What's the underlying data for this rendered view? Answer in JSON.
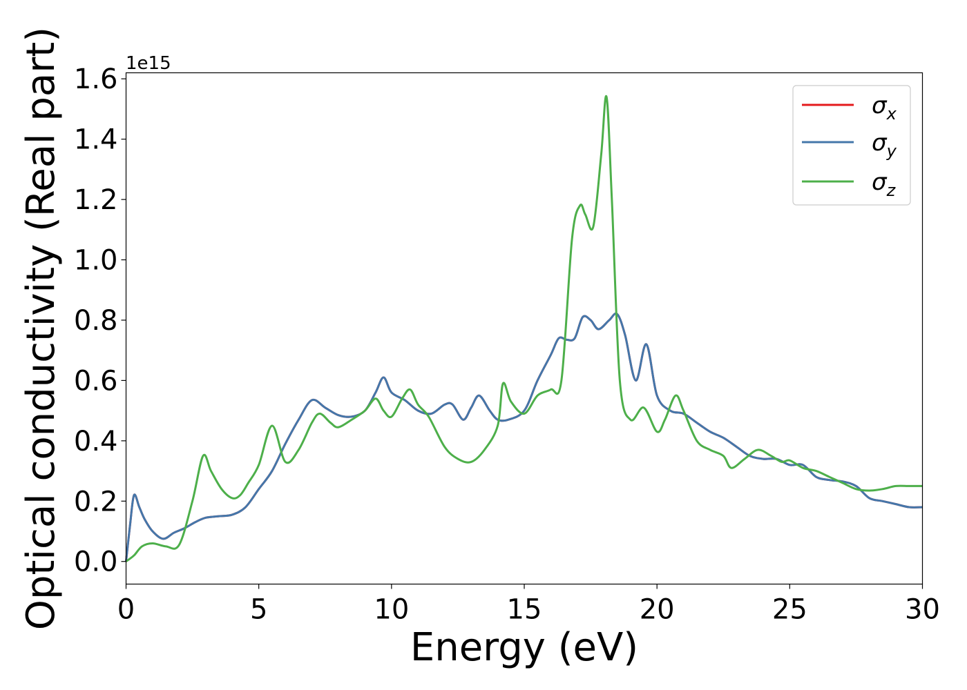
{
  "chart_data": {
    "type": "line",
    "title": "",
    "xlabel": "Energy (eV)",
    "ylabel": "Optical conductivity (Real part)",
    "y_offset_label": "1e15",
    "xlim": [
      0,
      30
    ],
    "ylim": [
      -0.075,
      1.62
    ],
    "x_ticks": [
      0,
      5,
      10,
      15,
      20,
      25,
      30
    ],
    "x_tick_labels": [
      "0",
      "5",
      "10",
      "15",
      "20",
      "25",
      "30"
    ],
    "y_ticks": [
      0.0,
      0.2,
      0.4,
      0.6,
      0.8,
      1.0,
      1.2,
      1.4,
      1.6
    ],
    "y_tick_labels": [
      "0.0",
      "0.2",
      "0.4",
      "0.6",
      "0.8",
      "1.0",
      "1.2",
      "1.4",
      "1.6"
    ],
    "grid": false,
    "legend_position": "top-right",
    "series": [
      {
        "name": "σx",
        "legend_base": "σ",
        "legend_sub": "x",
        "color": "#e41a1c",
        "x": [
          0,
          0.15,
          0.3,
          0.5,
          0.7,
          1.0,
          1.4,
          1.8,
          2.2,
          2.6,
          3.0,
          3.5,
          4.0,
          4.5,
          5.0,
          5.5,
          6.0,
          6.5,
          7.0,
          7.5,
          8.0,
          8.5,
          9.0,
          9.4,
          9.7,
          10.0,
          10.5,
          11.0,
          11.5,
          12.0,
          12.3,
          12.7,
          13.0,
          13.3,
          13.7,
          14.0,
          14.4,
          15.0,
          15.5,
          16.0,
          16.3,
          16.6,
          16.9,
          17.2,
          17.5,
          17.8,
          18.2,
          18.5,
          18.8,
          19.2,
          19.6,
          20.0,
          20.5,
          21.0,
          21.5,
          22.0,
          22.5,
          23.0,
          23.5,
          24.0,
          24.5,
          25.0,
          25.5,
          26.0,
          26.5,
          27.0,
          27.5,
          28.0,
          28.5,
          29.0,
          29.5,
          30.0
        ],
        "values": [
          0.0,
          0.12,
          0.22,
          0.18,
          0.14,
          0.1,
          0.075,
          0.095,
          0.11,
          0.13,
          0.145,
          0.15,
          0.155,
          0.18,
          0.24,
          0.3,
          0.39,
          0.47,
          0.535,
          0.51,
          0.485,
          0.48,
          0.5,
          0.56,
          0.61,
          0.56,
          0.535,
          0.5,
          0.49,
          0.52,
          0.52,
          0.47,
          0.51,
          0.55,
          0.5,
          0.47,
          0.47,
          0.5,
          0.6,
          0.685,
          0.74,
          0.735,
          0.74,
          0.81,
          0.8,
          0.77,
          0.8,
          0.82,
          0.75,
          0.6,
          0.72,
          0.55,
          0.5,
          0.49,
          0.46,
          0.43,
          0.41,
          0.38,
          0.35,
          0.34,
          0.34,
          0.32,
          0.32,
          0.28,
          0.27,
          0.265,
          0.25,
          0.21,
          0.2,
          0.19,
          0.18,
          0.18
        ]
      },
      {
        "name": "σy",
        "legend_base": "σ",
        "legend_sub": "y",
        "color": "#4477aa",
        "x": [
          0,
          0.15,
          0.3,
          0.5,
          0.7,
          1.0,
          1.4,
          1.8,
          2.2,
          2.6,
          3.0,
          3.5,
          4.0,
          4.5,
          5.0,
          5.5,
          6.0,
          6.5,
          7.0,
          7.5,
          8.0,
          8.5,
          9.0,
          9.4,
          9.7,
          10.0,
          10.5,
          11.0,
          11.5,
          12.0,
          12.3,
          12.7,
          13.0,
          13.3,
          13.7,
          14.0,
          14.4,
          15.0,
          15.5,
          16.0,
          16.3,
          16.6,
          16.9,
          17.2,
          17.5,
          17.8,
          18.2,
          18.5,
          18.8,
          19.2,
          19.6,
          20.0,
          20.5,
          21.0,
          21.5,
          22.0,
          22.5,
          23.0,
          23.5,
          24.0,
          24.5,
          25.0,
          25.5,
          26.0,
          26.5,
          27.0,
          27.5,
          28.0,
          28.5,
          29.0,
          29.5,
          30.0
        ],
        "values": [
          0.0,
          0.12,
          0.22,
          0.18,
          0.14,
          0.1,
          0.075,
          0.095,
          0.11,
          0.13,
          0.145,
          0.15,
          0.155,
          0.18,
          0.24,
          0.3,
          0.39,
          0.47,
          0.535,
          0.51,
          0.485,
          0.48,
          0.5,
          0.56,
          0.61,
          0.56,
          0.535,
          0.5,
          0.49,
          0.52,
          0.52,
          0.47,
          0.51,
          0.55,
          0.5,
          0.47,
          0.47,
          0.5,
          0.6,
          0.685,
          0.74,
          0.735,
          0.74,
          0.81,
          0.8,
          0.77,
          0.8,
          0.82,
          0.75,
          0.6,
          0.72,
          0.55,
          0.5,
          0.49,
          0.46,
          0.43,
          0.41,
          0.38,
          0.35,
          0.34,
          0.34,
          0.32,
          0.32,
          0.28,
          0.27,
          0.265,
          0.25,
          0.21,
          0.2,
          0.19,
          0.18,
          0.18
        ]
      },
      {
        "name": "σz",
        "legend_base": "σ",
        "legend_sub": "z",
        "color": "#4daf4a",
        "x": [
          0,
          0.3,
          0.6,
          1.0,
          1.5,
          2.0,
          2.5,
          2.9,
          3.2,
          3.6,
          4.0,
          4.3,
          4.6,
          5.0,
          5.5,
          6.0,
          6.5,
          7.0,
          7.3,
          7.7,
          8.0,
          8.5,
          9.0,
          9.4,
          9.7,
          10.0,
          10.4,
          10.7,
          11.0,
          11.4,
          12.0,
          12.5,
          13.0,
          13.5,
          14.0,
          14.2,
          14.5,
          15.0,
          15.5,
          16.0,
          16.4,
          16.8,
          17.1,
          17.3,
          17.6,
          17.9,
          18.1,
          18.3,
          18.6,
          19.0,
          19.5,
          20.0,
          20.3,
          20.7,
          21.0,
          21.5,
          22.0,
          22.5,
          22.8,
          23.3,
          23.8,
          24.3,
          24.7,
          25.0,
          25.5,
          26.0,
          26.5,
          27.0,
          27.5,
          28.0,
          28.5,
          29.0,
          29.5,
          30.0
        ],
        "values": [
          0.0,
          0.02,
          0.05,
          0.06,
          0.05,
          0.055,
          0.2,
          0.35,
          0.3,
          0.24,
          0.21,
          0.22,
          0.26,
          0.32,
          0.45,
          0.33,
          0.37,
          0.46,
          0.49,
          0.46,
          0.445,
          0.47,
          0.5,
          0.54,
          0.5,
          0.48,
          0.54,
          0.57,
          0.52,
          0.48,
          0.38,
          0.34,
          0.33,
          0.37,
          0.45,
          0.59,
          0.53,
          0.49,
          0.55,
          0.57,
          0.6,
          1.07,
          1.18,
          1.15,
          1.11,
          1.35,
          1.54,
          1.2,
          0.6,
          0.47,
          0.51,
          0.43,
          0.47,
          0.55,
          0.5,
          0.4,
          0.37,
          0.35,
          0.31,
          0.34,
          0.37,
          0.35,
          0.33,
          0.335,
          0.31,
          0.3,
          0.28,
          0.26,
          0.24,
          0.235,
          0.24,
          0.25,
          0.25,
          0.25
        ]
      }
    ]
  }
}
